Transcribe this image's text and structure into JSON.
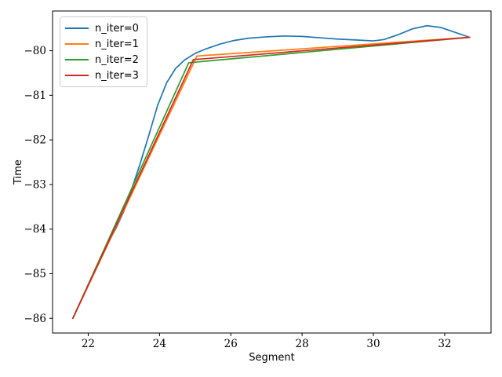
{
  "figure": {
    "background": "#ffffff",
    "frame_color": "#000000",
    "tick_color": "#000000"
  },
  "chart_data": {
    "type": "line",
    "title": "",
    "xlabel": "Segment",
    "ylabel": "Time",
    "xlim": [
      21.0,
      33.3
    ],
    "ylim": [
      -86.33,
      -79.11
    ],
    "grid": false,
    "x_ticks": [
      22,
      24,
      26,
      28,
      30,
      32
    ],
    "x_tick_labels": [
      "22",
      "24",
      "26",
      "28",
      "30",
      "32"
    ],
    "y_ticks": [
      -80,
      -81,
      -82,
      -83,
      -84,
      -85,
      -86
    ],
    "y_tick_labels": [
      "−80",
      "−81",
      "−82",
      "−83",
      "−84",
      "−85",
      "−86"
    ],
    "legend": {
      "position": "upper-left",
      "border_color": "#cccccc",
      "background": "#ffffff"
    },
    "series": [
      {
        "name": "n_iter=0",
        "color": "#1f77b4",
        "points": [
          [
            21.57,
            -86.0
          ],
          [
            21.9,
            -85.42
          ],
          [
            22.2,
            -84.9
          ],
          [
            22.5,
            -84.4
          ],
          [
            22.8,
            -83.95
          ],
          [
            23.0,
            -83.6
          ],
          [
            23.2,
            -83.15
          ],
          [
            23.45,
            -82.55
          ],
          [
            23.7,
            -81.9
          ],
          [
            23.95,
            -81.22
          ],
          [
            24.2,
            -80.72
          ],
          [
            24.45,
            -80.4
          ],
          [
            24.7,
            -80.21
          ],
          [
            25.0,
            -80.06
          ],
          [
            25.3,
            -79.96
          ],
          [
            25.7,
            -79.85
          ],
          [
            26.1,
            -79.77
          ],
          [
            26.5,
            -79.72
          ],
          [
            27.0,
            -79.69
          ],
          [
            27.5,
            -79.67
          ],
          [
            28.0,
            -79.68
          ],
          [
            28.5,
            -79.71
          ],
          [
            29.0,
            -79.74
          ],
          [
            29.5,
            -79.76
          ],
          [
            30.0,
            -79.78
          ],
          [
            30.3,
            -79.75
          ],
          [
            30.7,
            -79.64
          ],
          [
            31.1,
            -79.51
          ],
          [
            31.5,
            -79.44
          ],
          [
            31.9,
            -79.48
          ],
          [
            32.3,
            -79.59
          ],
          [
            32.7,
            -79.7
          ]
        ]
      },
      {
        "name": "n_iter=1",
        "color": "#ff7f0e",
        "points": [
          [
            21.57,
            -86.0
          ],
          [
            25.05,
            -80.12
          ],
          [
            32.7,
            -79.7
          ]
        ]
      },
      {
        "name": "n_iter=2",
        "color": "#2ca02c",
        "points": [
          [
            21.57,
            -86.0
          ],
          [
            24.82,
            -80.27
          ],
          [
            32.7,
            -79.7
          ]
        ]
      },
      {
        "name": "n_iter=3",
        "color": "#d62728",
        "points": [
          [
            21.57,
            -86.0
          ],
          [
            24.95,
            -80.2
          ],
          [
            32.7,
            -79.7
          ]
        ]
      }
    ]
  }
}
